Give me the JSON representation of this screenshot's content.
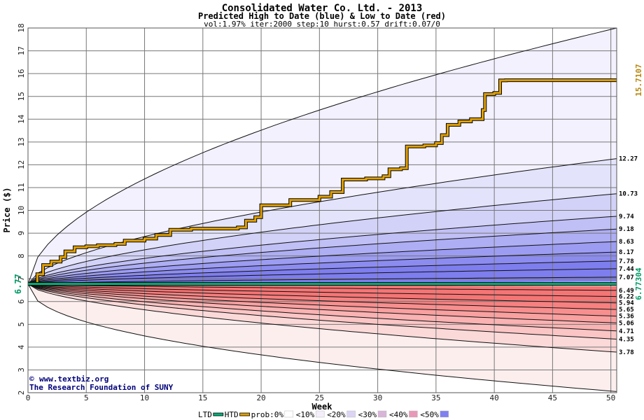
{
  "chart_data": {
    "type": "area",
    "title": "Consolidated Water Co. Ltd. - 2013",
    "subtitle": "Predicted High to Date (blue) &  Low to Date (red)",
    "params": "vol:1.97% iter:2000 step:10 hurst:0.57 drift:0.07/0",
    "xlabel": "Week",
    "ylabel": "Price ($)",
    "xlim": [
      0,
      50.5
    ],
    "ylim": [
      2,
      18
    ],
    "x_ticks": [
      0,
      5,
      10,
      15,
      20,
      25,
      30,
      35,
      40,
      45,
      50
    ],
    "y_ticks": [
      2,
      3,
      4,
      5,
      6,
      7,
      8,
      9,
      10,
      11,
      12,
      13,
      14,
      15,
      16,
      17,
      18
    ],
    "grid": true,
    "start_price": 6.77,
    "start_label": "6.77",
    "right_labels": [
      {
        "label": "15.7107",
        "value": 15.7107,
        "color": "#b8860b"
      },
      {
        "label": "6.77304",
        "value": 6.77304,
        "color": "#009966"
      }
    ],
    "high_levels": [
      {
        "label": "12.27",
        "value": 12.27
      },
      {
        "label": "10.73",
        "value": 10.73
      },
      {
        "label": "9.74",
        "value": 9.74
      },
      {
        "label": "9.18",
        "value": 9.18
      },
      {
        "label": "8.63",
        "value": 8.63
      },
      {
        "label": "8.17",
        "value": 8.17
      },
      {
        "label": "7.78",
        "value": 7.78
      },
      {
        "label": "7.44",
        "value": 7.44
      },
      {
        "label": "7.07",
        "value": 7.07
      }
    ],
    "low_levels": [
      {
        "label": "6.49",
        "value": 6.49
      },
      {
        "label": "6.22",
        "value": 6.22
      },
      {
        "label": "5.94",
        "value": 5.94
      },
      {
        "label": "5.65",
        "value": 5.65
      },
      {
        "label": "5.36",
        "value": 5.36
      },
      {
        "label": "5.06",
        "value": 5.06
      },
      {
        "label": "4.71",
        "value": 4.71
      },
      {
        "label": "4.35",
        "value": 4.35
      },
      {
        "label": "3.78",
        "value": 3.78
      }
    ],
    "outer_high_end": 18,
    "outer_low_end": 2.05,
    "series": [
      {
        "name": "HTD",
        "color": "#e0a000",
        "x": [
          0,
          0.8,
          1.3,
          2.0,
          2.8,
          3.2,
          4.0,
          5.0,
          6.0,
          7.5,
          8.3,
          10.0,
          11.0,
          12.2,
          14.0,
          16.0,
          18.0,
          18.7,
          19.5,
          20.0,
          22.5,
          25.0,
          26.0,
          27.0,
          29.0,
          30.5,
          31.0,
          32.0,
          32.5,
          34.0,
          35.0,
          35.5,
          36.0,
          37.0,
          38.0,
          39.0,
          39.2,
          40.0,
          40.5,
          41.0,
          50.5
        ],
        "y": [
          6.77,
          7.2,
          7.6,
          7.75,
          7.95,
          8.2,
          8.38,
          8.42,
          8.47,
          8.53,
          8.67,
          8.76,
          8.92,
          9.15,
          9.2,
          9.2,
          9.25,
          9.55,
          9.7,
          10.22,
          10.45,
          10.6,
          10.8,
          11.35,
          11.4,
          11.5,
          11.8,
          11.85,
          12.8,
          12.85,
          12.95,
          13.3,
          13.75,
          13.9,
          14.0,
          14.4,
          15.1,
          15.15,
          15.7,
          15.71,
          15.71
        ]
      },
      {
        "name": "LTD",
        "color": "#00b07a",
        "x": [
          0,
          50.5
        ],
        "y": [
          6.77304,
          6.77304
        ]
      }
    ],
    "legend": [
      "LTD",
      "HTD",
      "prob:0%",
      "<10%",
      "<20%",
      "<30%",
      "<40%",
      "<50%"
    ],
    "legend_colors": [
      "#00b07a",
      "#e0a000",
      "#ffffff",
      "#f4eefa",
      "#dcd4f4",
      "#d8b4d8",
      "#e898b8",
      "#8080f0"
    ]
  },
  "credits": {
    "site": "www.textbiz.org",
    "org": "The Research Foundation of SUNY"
  },
  "colors": {
    "high_bands": [
      "#f3f1fe",
      "#e3e3fb",
      "#d2d2f8",
      "#c0c0f6",
      "#aeaef4",
      "#9c9cf2",
      "#8c8cf0",
      "#7e7eee"
    ],
    "low_bands": [
      "#fdeeee",
      "#fcd9d9",
      "#fbc5c5",
      "#fab2b2",
      "#f9a0a0",
      "#f88f8f",
      "#f78080",
      "#f57575"
    ]
  }
}
